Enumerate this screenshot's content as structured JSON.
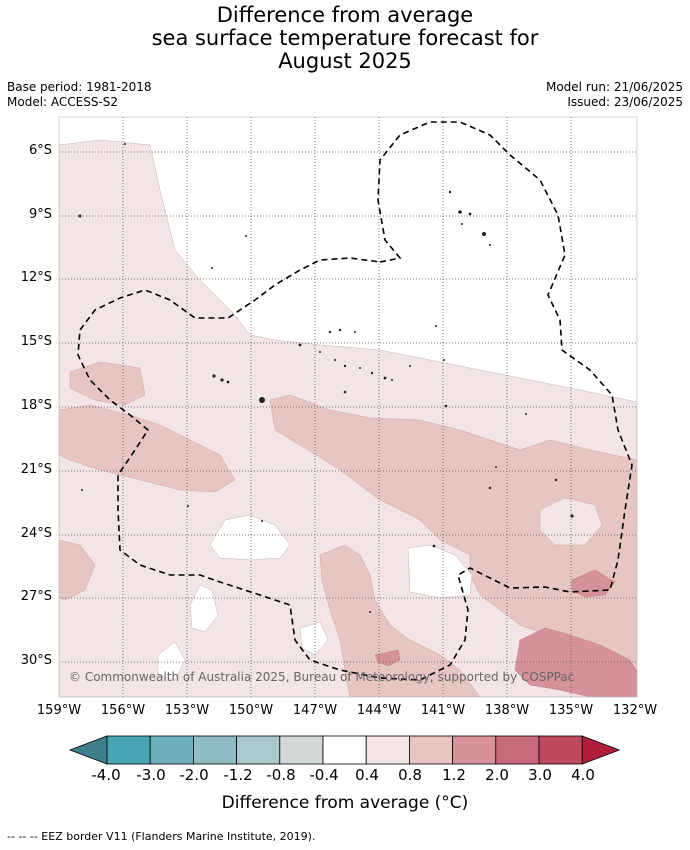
{
  "title": {
    "line1": "Difference from average",
    "line2": "sea surface temperature forecast for",
    "line3": "August 2025"
  },
  "meta": {
    "base_period": "Base period: 1981-2018",
    "model": "Model: ACCESS-S2",
    "model_run": "Model run: 21/06/2025",
    "issued": "Issued: 23/06/2025"
  },
  "map": {
    "latitude_labels": [
      "6°S",
      "9°S",
      "12°S",
      "15°S",
      "18°S",
      "21°S",
      "24°S",
      "27°S",
      "30°S"
    ],
    "longitude_labels": [
      "159°W",
      "156°W",
      "153°W",
      "150°W",
      "147°W",
      "144°W",
      "141°W",
      "138°W",
      "135°W",
      "132°W"
    ],
    "copyright": "© Commonwealth of Australia 2025, Bureau of Meteorology, supported by COSPPac",
    "colors": {
      "pale_pink": "#f3e5e5",
      "light_pink": "#e6c5c3",
      "mid_pink": "#d6919a",
      "deep_pink": "#c86a7c",
      "land": "#222222",
      "grid": "#555555"
    }
  },
  "colorbar": {
    "ticks": [
      "-4.0",
      "-3.0",
      "-2.0",
      "-1.2",
      "-0.8",
      "-0.4",
      "0.4",
      "0.8",
      "1.2",
      "2.0",
      "3.0",
      "4.0"
    ],
    "colors": [
      "#3d7f8a",
      "#49a5b4",
      "#6fb0bd",
      "#8fbcc6",
      "#a9c9cd",
      "#d2d7d8",
      "#ffffff",
      "#f3e5e5",
      "#e6c5c3",
      "#d6919a",
      "#c86a7c",
      "#bf4a5e",
      "#b01e3c"
    ],
    "label": "Difference from average (°C)"
  },
  "footer": "--  --  -- EEZ border V11 (Flanders Marine Institute, 2019)."
}
